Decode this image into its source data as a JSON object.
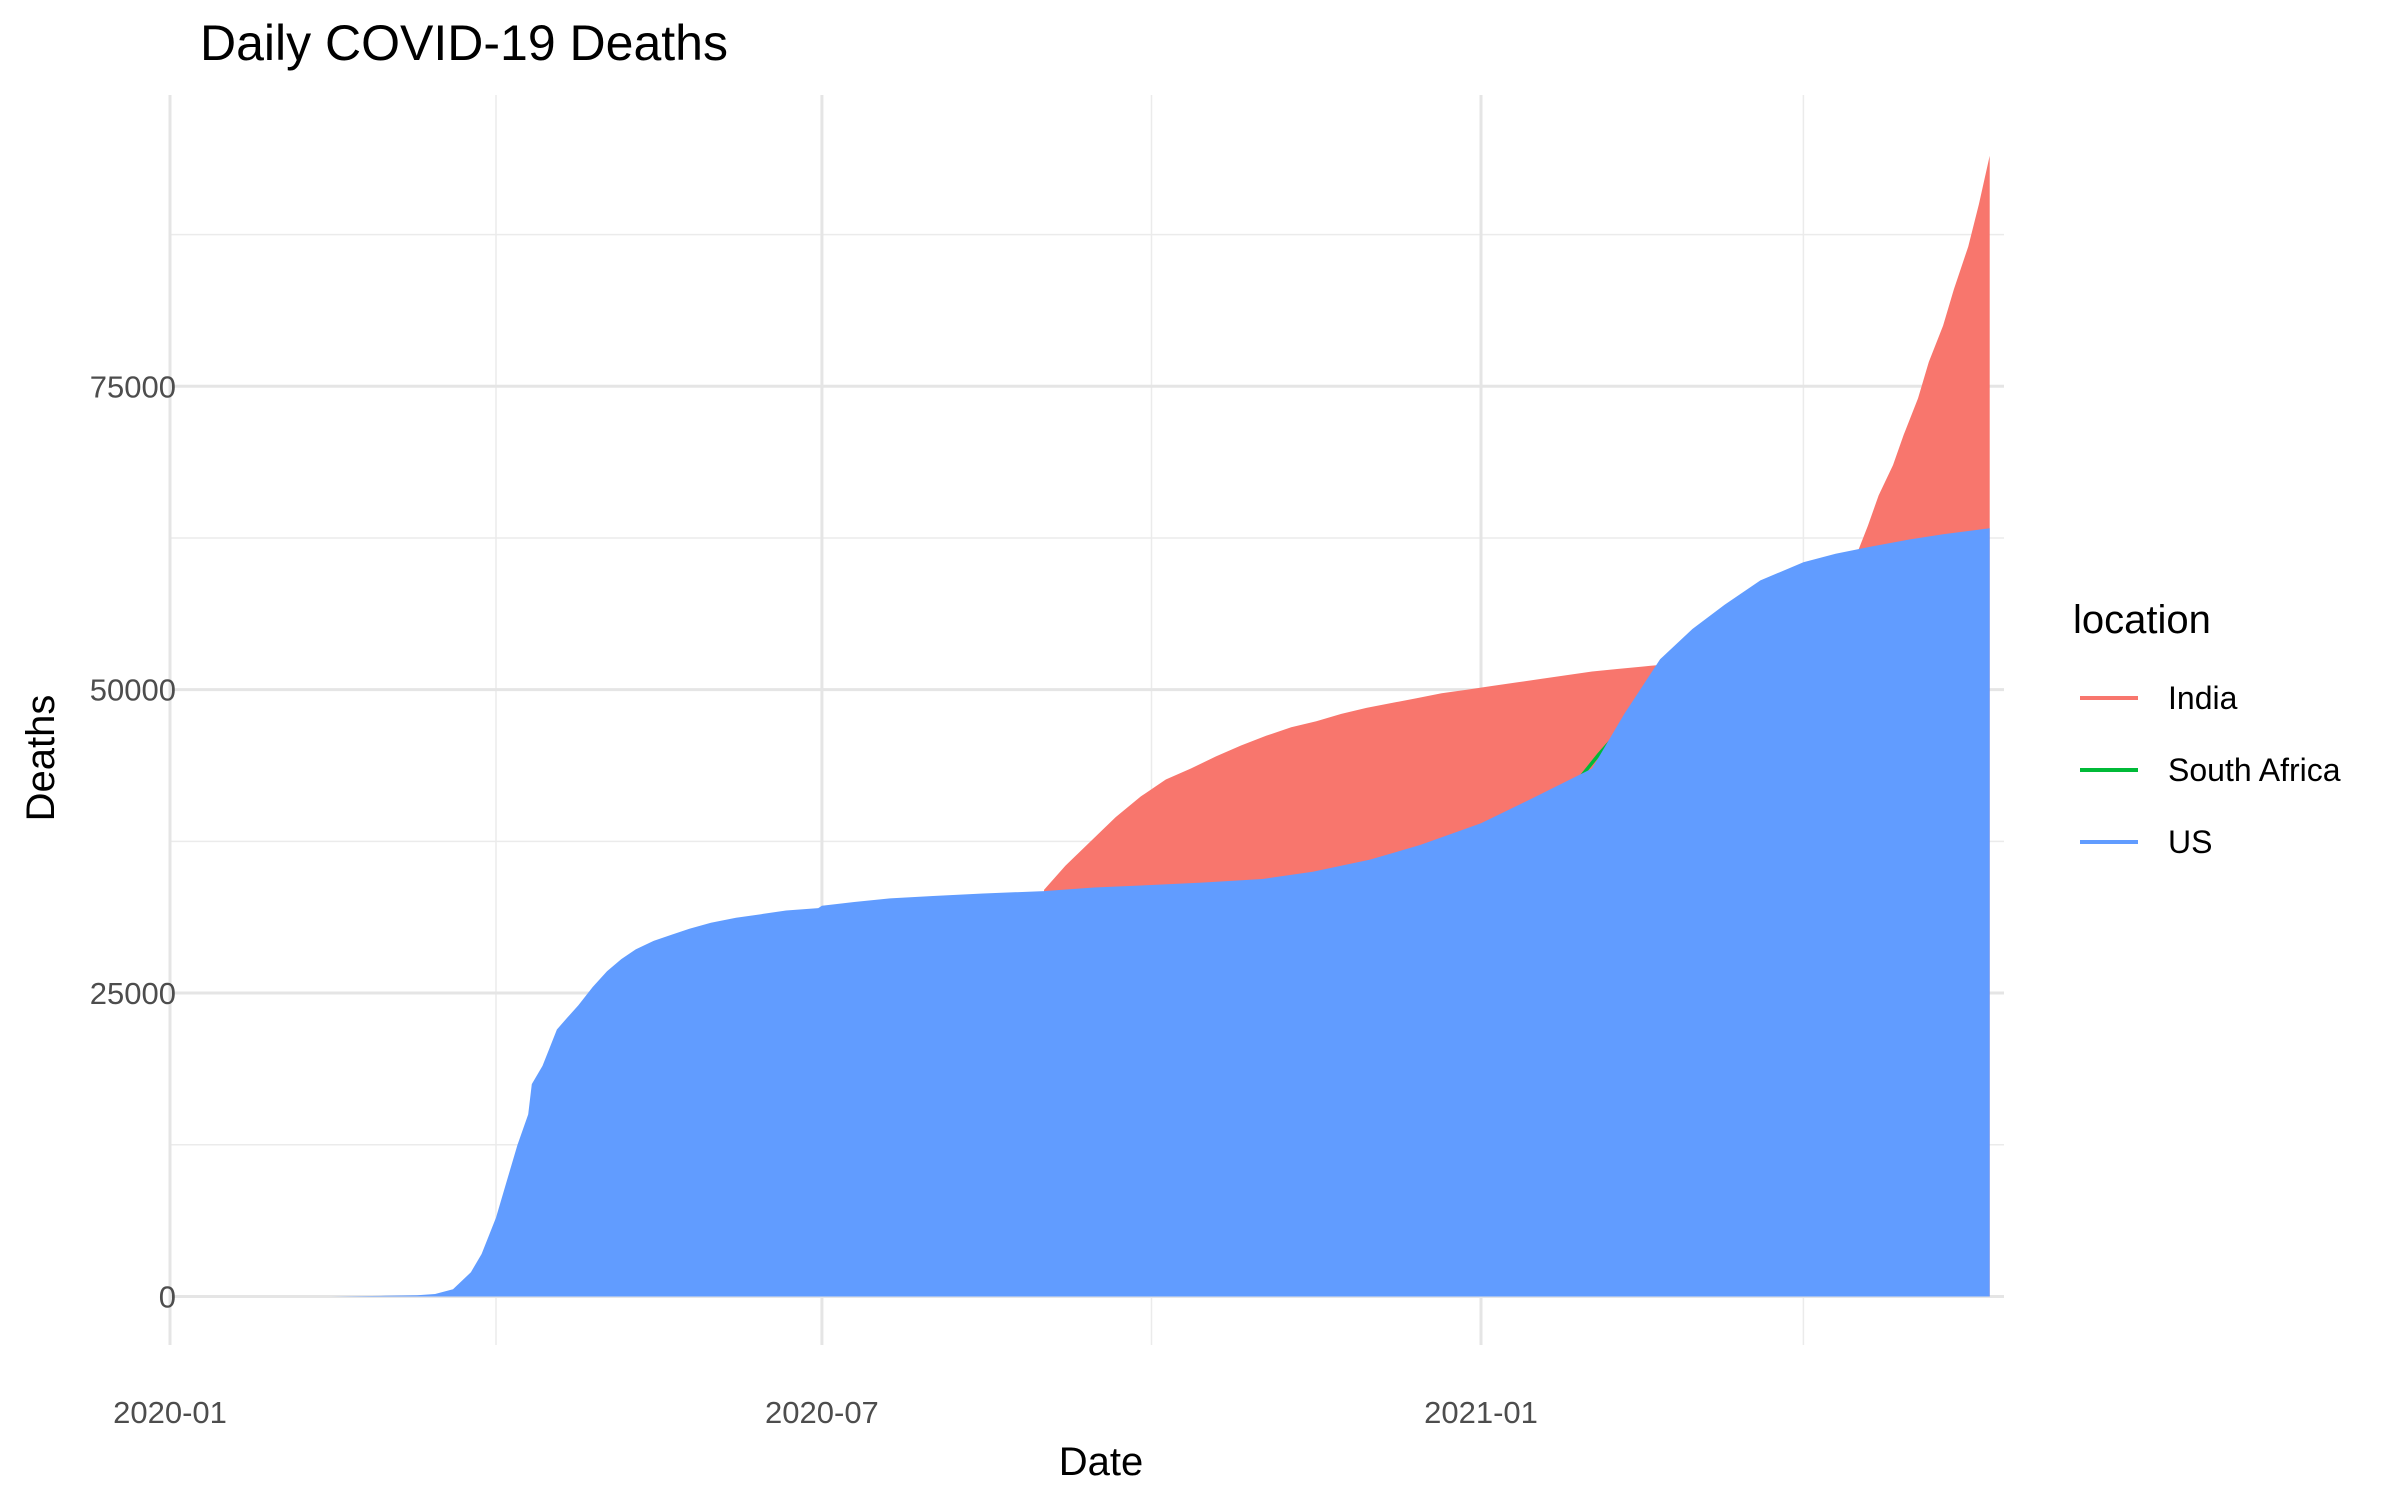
{
  "chart_data": {
    "type": "area",
    "title": "Daily COVID-19 Deaths",
    "xlabel": "Date",
    "ylabel": "Deaths",
    "x_type": "date",
    "xlim": [
      "2020-01-01",
      "2021-05-27"
    ],
    "ylim": [
      -4000,
      99000
    ],
    "x_ticks": [
      {
        "value": "2020-01-01",
        "label": "2020-01"
      },
      {
        "value": "2020-07-01",
        "label": "2020-07"
      },
      {
        "value": "2021-01-01",
        "label": "2021-01"
      }
    ],
    "x_minor_ticks": [
      "2020-04-01",
      "2020-10-01",
      "2021-04-01"
    ],
    "y_ticks": [
      {
        "value": 0,
        "label": "0"
      },
      {
        "value": 25000,
        "label": "25000"
      },
      {
        "value": 50000,
        "label": "50000"
      },
      {
        "value": 75000,
        "label": "75000"
      }
    ],
    "y_minor_ticks": [
      12500,
      37500,
      62500,
      87500
    ],
    "grid": true,
    "legend": {
      "title": "location",
      "position": "right"
    },
    "series": [
      {
        "name": "India",
        "color": "#F8766D",
        "geom": "area",
        "x": [
          "2020-09-01",
          "2020-09-07",
          "2020-09-14",
          "2020-09-21",
          "2020-09-28",
          "2020-10-05",
          "2020-10-12",
          "2020-10-19",
          "2020-10-26",
          "2020-11-02",
          "2020-11-09",
          "2020-11-16",
          "2020-11-23",
          "2020-11-30",
          "2020-12-07",
          "2020-12-14",
          "2020-12-21",
          "2020-12-28",
          "2021-01-04",
          "2021-01-11",
          "2021-01-18",
          "2021-01-25",
          "2021-02-01",
          "2021-02-08",
          "2021-02-15",
          "2021-02-22",
          "2021-03-01",
          "2021-03-08",
          "2021-03-15",
          "2021-03-22",
          "2021-03-29",
          "2021-04-05",
          "2021-04-12",
          "2021-04-15",
          "2021-04-19",
          "2021-04-22",
          "2021-04-26",
          "2021-04-29",
          "2021-05-03",
          "2021-05-06",
          "2021-05-10",
          "2021-05-13",
          "2021-05-17",
          "2021-05-20",
          "2021-05-23"
        ],
        "y": [
          33500,
          35500,
          37500,
          39500,
          41200,
          42600,
          43500,
          44500,
          45400,
          46200,
          46900,
          47400,
          48000,
          48500,
          48900,
          49300,
          49700,
          50000,
          50300,
          50600,
          50900,
          51200,
          51500,
          51700,
          51900,
          52100,
          52300,
          52500,
          52800,
          53200,
          53800,
          55000,
          58000,
          60500,
          63500,
          66000,
          68500,
          71000,
          74000,
          77000,
          80000,
          83000,
          86500,
          90000,
          94000
        ]
      },
      {
        "name": "South Africa",
        "color": "#00BA38",
        "geom": "line",
        "x": [
          "2021-01-25",
          "2021-01-28",
          "2021-01-31",
          "2021-02-03",
          "2021-02-06",
          "2021-02-09",
          "2021-02-12",
          "2021-02-15",
          "2021-02-18",
          "2021-02-21"
        ],
        "y": [
          41500,
          42500,
          43600,
          44700,
          45700,
          46500,
          47100,
          47700,
          48200,
          48600
        ]
      },
      {
        "name": "US",
        "color": "#619CFF",
        "geom": "area",
        "x": [
          "2020-01-22",
          "2020-02-01",
          "2020-02-15",
          "2020-03-01",
          "2020-03-10",
          "2020-03-15",
          "2020-03-20",
          "2020-03-25",
          "2020-03-28",
          "2020-04-01",
          "2020-04-04",
          "2020-04-07",
          "2020-04-10",
          "2020-04-11",
          "2020-04-14",
          "2020-04-16",
          "2020-04-18",
          "2020-04-21",
          "2020-04-24",
          "2020-04-28",
          "2020-05-02",
          "2020-05-06",
          "2020-05-10",
          "2020-05-15",
          "2020-05-20",
          "2020-05-25",
          "2020-05-31",
          "2020-06-07",
          "2020-06-14",
          "2020-06-21",
          "2020-06-30",
          "2020-07-01",
          "2020-07-10",
          "2020-07-20",
          "2020-08-01",
          "2020-08-15",
          "2020-09-01",
          "2020-09-15",
          "2020-10-01",
          "2020-10-15",
          "2020-11-01",
          "2020-11-15",
          "2020-12-01",
          "2020-12-15",
          "2021-01-01",
          "2021-01-15",
          "2021-02-01",
          "2021-02-10",
          "2021-02-20",
          "2021-03-01",
          "2021-03-10",
          "2021-03-20",
          "2021-04-01",
          "2021-04-10",
          "2021-04-20",
          "2021-05-01",
          "2021-05-10",
          "2021-05-23"
        ],
        "y": [
          0,
          0,
          0,
          50,
          100,
          200,
          600,
          2000,
          3500,
          6500,
          9500,
          12500,
          15000,
          17500,
          19000,
          20500,
          22000,
          23000,
          24000,
          25500,
          26800,
          27800,
          28600,
          29300,
          29800,
          30300,
          30800,
          31200,
          31500,
          31800,
          32000,
          32200,
          32500,
          32800,
          33000,
          33200,
          33400,
          33700,
          33900,
          34100,
          34400,
          35000,
          36000,
          37200,
          39000,
          41000,
          43500,
          48000,
          52500,
          55000,
          57000,
          59000,
          60500,
          61200,
          61800,
          62400,
          62800,
          63300
        ]
      }
    ]
  }
}
